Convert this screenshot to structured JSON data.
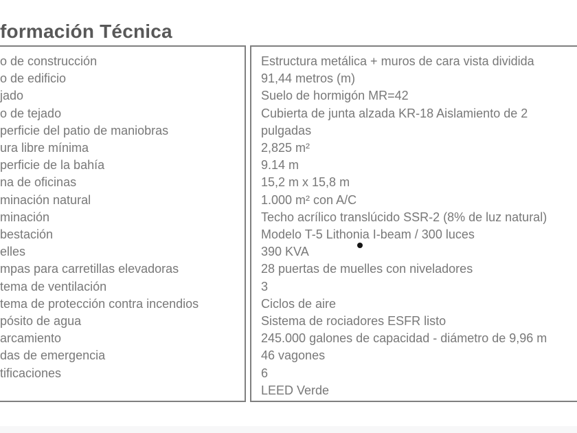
{
  "page": {
    "title": "formación Técnica"
  },
  "spec_table": {
    "labels": [
      "o de construcción",
      "o de edificio",
      "jado",
      "o de tejado",
      "perficie del patio de maniobras",
      "ura libre mínima",
      "perficie de la bahía",
      "na de oficinas",
      "minación natural",
      "minación",
      "bestación",
      "elles",
      "mpas para carretillas elevadoras",
      "tema de ventilación",
      "tema de protección contra incendios",
      "pósito de agua",
      "arcamiento",
      "das de emergencia",
      "tificaciones"
    ],
    "value_lines": [
      "Estructura metálica + muros de cara vista dividida",
      "91,44 metros (m)",
      "Suelo de hormigón MR=42",
      "Cubierta de junta alzada KR-18 Aislamiento de 2",
      "pulgadas",
      "2,825 m²",
      "9.14 m",
      "15,2 m x 15,8 m",
      "1.000 m² con A/C",
      "Techo acrílico translúcido SSR-2 (8% de luz natural)",
      "Modelo T-5 Lithonia I-beam / 300 luces",
      "390 KVA",
      "28 puertas de muelles con niveladores",
      "3",
      "Ciclos de aire",
      "Sistema de rociadores ESFR listo",
      "245.000 galones de capacidad - diámetro de 9,96 m",
      "46 vagones",
      "6",
      "LEED Verde"
    ]
  },
  "colors": {
    "body_text": "#787878",
    "title_text": "#585858",
    "border": "#7f7f7f",
    "dot": "#151515"
  }
}
